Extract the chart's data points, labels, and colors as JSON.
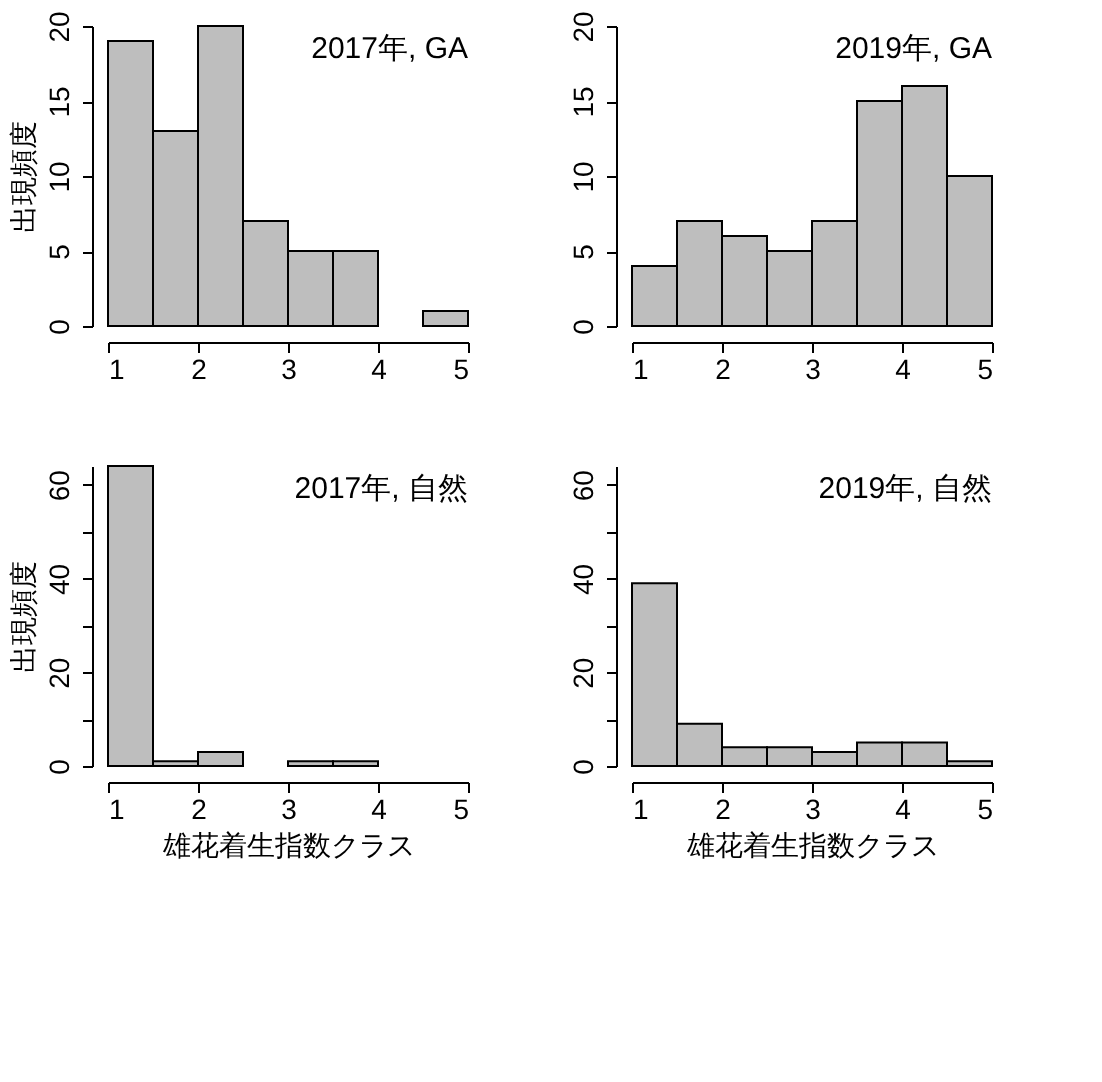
{
  "chart_data": [
    {
      "type": "histogram",
      "annotations": [
        "2017年, GA"
      ],
      "ylabel": "出現頻度",
      "bins": [
        1,
        1.5,
        2,
        2.5,
        3,
        3.5,
        4,
        4.5,
        5
      ],
      "values": [
        19,
        13,
        20,
        7,
        5,
        5,
        0,
        1
      ],
      "color": "#bebebe",
      "xlim": [
        1,
        5
      ],
      "xticks": [
        1,
        2,
        3,
        4,
        5
      ],
      "ylim": [
        0,
        20
      ],
      "yticks": [
        0,
        5,
        10,
        15,
        20
      ],
      "grid": false
    },
    {
      "type": "histogram",
      "annotations": [
        "2019年, GA"
      ],
      "bins": [
        1,
        1.5,
        2,
        2.5,
        3,
        3.5,
        4,
        4.5,
        5
      ],
      "values": [
        4,
        7,
        6,
        5,
        7,
        15,
        16,
        10
      ],
      "color": "#bebebe",
      "xlim": [
        1,
        5
      ],
      "xticks": [
        1,
        2,
        3,
        4,
        5
      ],
      "ylim": [
        0,
        20
      ],
      "yticks": [
        0,
        5,
        10,
        15,
        20
      ],
      "grid": false
    },
    {
      "type": "histogram",
      "annotations": [
        "2017年, 自然"
      ],
      "ylabel": "出現頻度",
      "xlabel": "雄花着生指数クラス",
      "bins": [
        1,
        1.5,
        2,
        2.5,
        3,
        3.5,
        4,
        4.5,
        5
      ],
      "values": [
        64,
        1,
        3,
        0,
        1,
        1,
        0,
        0
      ],
      "color": "#bebebe",
      "xlim": [
        1,
        5
      ],
      "xticks": [
        1,
        2,
        3,
        4,
        5
      ],
      "ylim": [
        0,
        64
      ],
      "yticks": [
        0,
        {
          "value": 10,
          "label": null
        },
        20,
        {
          "value": 30,
          "label": null
        },
        40,
        {
          "value": 50,
          "label": null
        },
        60
      ],
      "grid": false
    },
    {
      "type": "histogram",
      "annotations": [
        "2019年, 自然"
      ],
      "xlabel": "雄花着生指数クラス",
      "bins": [
        1,
        1.5,
        2,
        2.5,
        3,
        3.5,
        4,
        4.5,
        5
      ],
      "values": [
        39,
        9,
        4,
        4,
        3,
        5,
        5,
        1
      ],
      "color": "#bebebe",
      "xlim": [
        1,
        5
      ],
      "xticks": [
        1,
        2,
        3,
        4,
        5
      ],
      "ylim": [
        0,
        64
      ],
      "yticks": [
        0,
        {
          "value": 10,
          "label": null
        },
        20,
        {
          "value": 30,
          "label": null
        },
        40,
        {
          "value": 50,
          "label": null
        },
        60
      ],
      "grid": false
    }
  ]
}
